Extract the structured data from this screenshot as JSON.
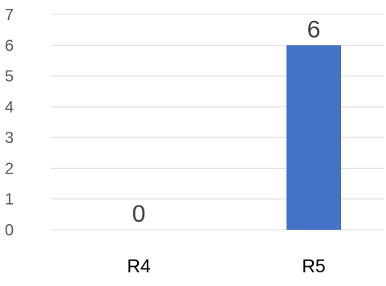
{
  "chart_data": {
    "type": "bar",
    "categories": [
      "R4",
      "R5"
    ],
    "values": [
      0,
      6
    ],
    "data_labels": [
      "0",
      "6"
    ],
    "yticks": [
      "0",
      "1",
      "2",
      "3",
      "4",
      "5",
      "6",
      "7"
    ],
    "ylim": [
      0,
      7
    ],
    "grid": true,
    "legend": "none",
    "bar_color": "#4472c4",
    "title": "",
    "xlabel": "",
    "ylabel": ""
  }
}
